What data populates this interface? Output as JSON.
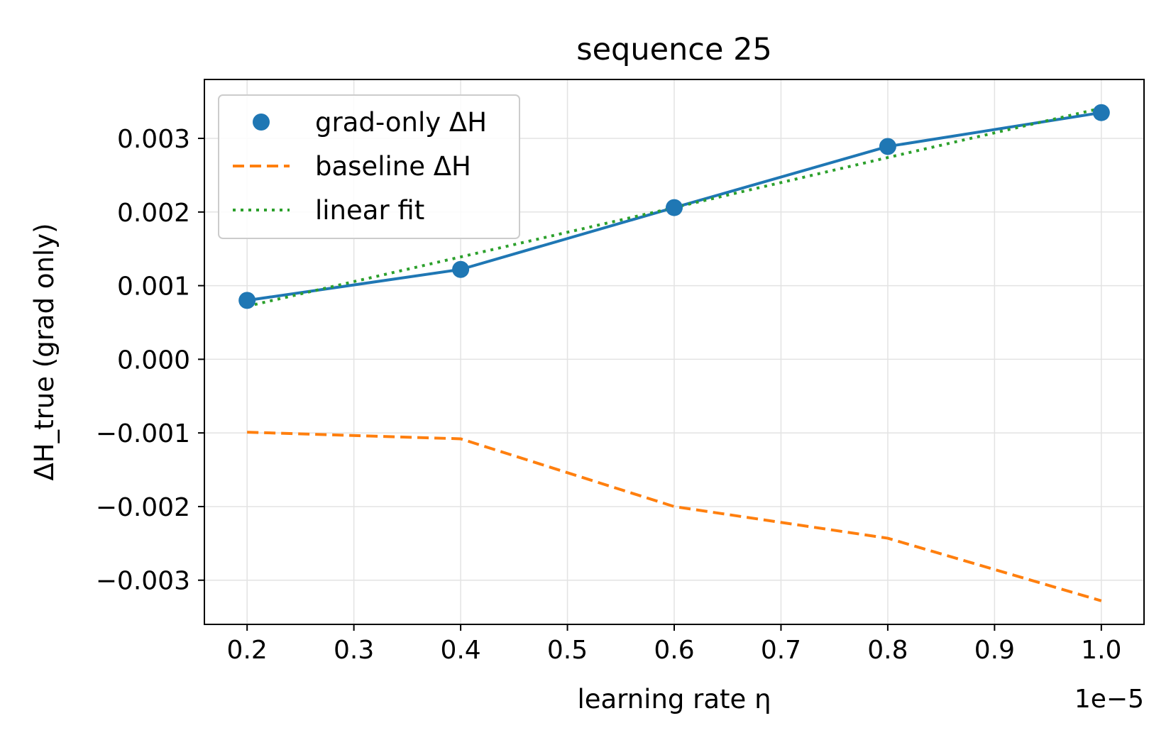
{
  "chart_data": {
    "type": "line",
    "title": "sequence 25",
    "xlabel": "learning rate η",
    "ylabel": "ΔH_true (grad only)",
    "x_offset_label": "1e−5",
    "x_scale": 1e-05,
    "xlim": [
      0.16,
      1.04
    ],
    "ylim": [
      -0.0036,
      0.0038
    ],
    "x_ticks": [
      0.2,
      0.3,
      0.4,
      0.5,
      0.6,
      0.7,
      0.8,
      0.9,
      1.0
    ],
    "x_tick_labels": [
      "0.2",
      "0.3",
      "0.4",
      "0.5",
      "0.6",
      "0.7",
      "0.8",
      "0.9",
      "1.0"
    ],
    "y_ticks": [
      0.003,
      0.002,
      0.001,
      0.0,
      -0.001,
      -0.002,
      -0.003
    ],
    "y_tick_labels": [
      "0.003",
      "0.002",
      "0.001",
      "0.000",
      "−0.001",
      "−0.002",
      "−0.003"
    ],
    "grid": true,
    "legend_position": "top-left",
    "x": [
      0.2,
      0.4,
      0.6,
      0.8,
      1.0
    ],
    "series": [
      {
        "name": "grad-only ΔH",
        "kind": "scatter+line",
        "color": "#1f77b4",
        "values": [
          0.0008,
          0.00122,
          0.00206,
          0.00289,
          0.00335
        ]
      },
      {
        "name": "baseline ΔH",
        "kind": "dashed-line",
        "color": "#ff7f0e",
        "values": [
          -0.00099,
          -0.00108,
          -0.002,
          -0.00243,
          -0.00328
        ]
      },
      {
        "name": "linear fit",
        "kind": "dotted-line",
        "color": "#2ca02c",
        "values": [
          0.00072,
          0.00139,
          0.00206,
          0.00274,
          0.00341
        ]
      }
    ]
  }
}
